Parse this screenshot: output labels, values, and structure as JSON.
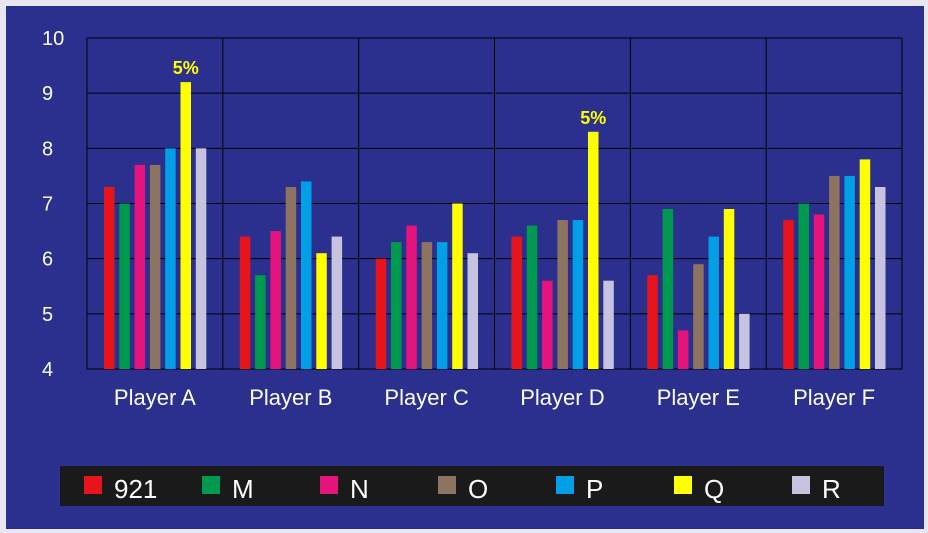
{
  "chart_data": {
    "type": "bar",
    "categories": [
      "Player A",
      "Player B",
      "Player C",
      "Player D",
      "Player E",
      "Player F"
    ],
    "series": [
      {
        "name": "921",
        "color": "#e8141c",
        "values": [
          7.3,
          6.4,
          6.0,
          6.4,
          5.7,
          6.7
        ]
      },
      {
        "name": "M",
        "color": "#009a4e",
        "values": [
          7.0,
          5.7,
          6.3,
          6.6,
          6.9,
          7.0
        ]
      },
      {
        "name": "N",
        "color": "#e4147c",
        "values": [
          7.7,
          6.5,
          6.6,
          5.6,
          4.7,
          6.8
        ]
      },
      {
        "name": "O",
        "color": "#8c7460",
        "values": [
          7.7,
          7.3,
          6.3,
          6.7,
          5.9,
          7.5
        ]
      },
      {
        "name": "P",
        "color": "#009fe6",
        "values": [
          8.0,
          7.4,
          6.3,
          6.7,
          6.4,
          7.5
        ]
      },
      {
        "name": "Q",
        "color": "#ffff00",
        "values": [
          9.2,
          6.1,
          7.0,
          8.3,
          6.9,
          7.8
        ]
      },
      {
        "name": "R",
        "color": "#c6c3e0",
        "values": [
          8.0,
          6.4,
          6.1,
          5.6,
          5.0,
          7.3
        ]
      }
    ],
    "ylim": [
      4,
      10
    ],
    "yticks": [
      4,
      5,
      6,
      7,
      8,
      9,
      10
    ],
    "grid": true,
    "legend_position": "bottom",
    "annotations": [
      {
        "text": "5%",
        "category": "Player A",
        "series": "Q"
      },
      {
        "text": "5%",
        "category": "Player D",
        "series": "Q"
      }
    ],
    "colors": {
      "background": "#2b2f8e",
      "grid": "#000000",
      "legend_background": "#1a1a1a",
      "annotation": "#ffff00"
    }
  }
}
